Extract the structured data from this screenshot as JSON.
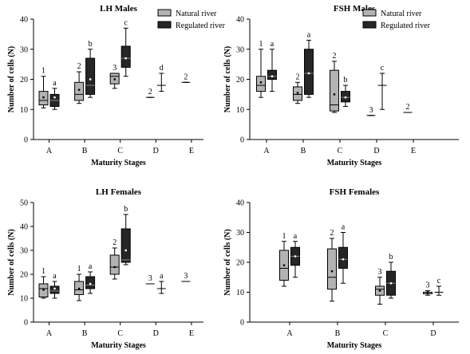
{
  "legend": {
    "natural": "Natural river",
    "regulated": "Regulated river"
  },
  "colors": {
    "natural": "#b3b3b3",
    "regulated": "#262626",
    "axis": "#000000"
  },
  "chart_data": [
    {
      "type": "box",
      "title": "LH Males",
      "xlabel": "Maturity Stages",
      "ylabel": "Number of cells (N)",
      "ylim": [
        0,
        40
      ],
      "yticks": [
        0,
        10,
        20,
        30,
        40
      ],
      "categories": [
        "A",
        "B",
        "C",
        "D",
        "E"
      ],
      "legend_position": "top-center",
      "series": [
        {
          "name": "Natural river",
          "boxes": [
            {
              "category": "A",
              "min": 10.5,
              "q1": 11.5,
              "median": 13,
              "q3": 16,
              "max": 21,
              "mean": 14,
              "label": "1"
            },
            {
              "category": "B",
              "min": 12,
              "q1": 13,
              "median": 15,
              "q3": 19,
              "max": 22.5,
              "mean": 16.5,
              "label": "2"
            },
            {
              "category": "C",
              "min": 17,
              "q1": 18.5,
              "median": 21,
              "q3": 22,
              "max": 22,
              "mean": 20,
              "label": "3"
            },
            {
              "category": "D",
              "min": 14,
              "q1": 14,
              "median": 14,
              "q3": 14,
              "max": 14,
              "mean": 14,
              "label": "2"
            },
            {
              "category": "E",
              "min": 19,
              "q1": 19,
              "median": 19,
              "q3": 19,
              "max": 19,
              "mean": 19,
              "label": "2"
            }
          ]
        },
        {
          "name": "Regulated river",
          "boxes": [
            {
              "category": "A",
              "min": 10,
              "q1": 11,
              "median": 13,
              "q3": 15,
              "max": 17,
              "mean": 14,
              "label": "a"
            },
            {
              "category": "B",
              "min": 14,
              "q1": 15,
              "median": 18,
              "q3": 27,
              "max": 30,
              "mean": 20,
              "label": "b"
            },
            {
              "category": "C",
              "min": 21,
              "q1": 24,
              "median": 27,
              "q3": 31,
              "max": 37,
              "mean": 27,
              "label": "c"
            },
            {
              "category": "D",
              "min": 16,
              "q1": 18,
              "median": 18,
              "q3": 18,
              "max": 22,
              "mean": 18,
              "label": "d"
            }
          ]
        }
      ]
    },
    {
      "type": "box",
      "title": "FSH Males",
      "xlabel": "Maturity Stages",
      "ylabel": "Number of cells (N)",
      "ylim": [
        0,
        40
      ],
      "yticks": [
        0,
        10,
        20,
        30,
        40
      ],
      "categories": [
        "A",
        "B",
        "C",
        "D",
        "E"
      ],
      "legend_position": "top-right",
      "series": [
        {
          "name": "Natural river",
          "boxes": [
            {
              "category": "A",
              "min": 14,
              "q1": 16,
              "median": 18,
              "q3": 21,
              "max": 30,
              "mean": 19,
              "label": "1"
            },
            {
              "category": "B",
              "min": 12,
              "q1": 13,
              "median": 15,
              "q3": 17.5,
              "max": 19,
              "mean": 15.5,
              "label": "2"
            },
            {
              "category": "C",
              "min": 9,
              "q1": 9.5,
              "median": 11.5,
              "q3": 23,
              "max": 26,
              "mean": 15,
              "label": "2"
            },
            {
              "category": "D",
              "min": 8,
              "q1": 8,
              "median": 8,
              "q3": 8,
              "max": 8,
              "mean": 8,
              "label": "3"
            },
            {
              "category": "E",
              "min": 9,
              "q1": 9,
              "median": 9,
              "q3": 9,
              "max": 9,
              "mean": 9,
              "label": "2"
            }
          ]
        },
        {
          "name": "Regulated river",
          "boxes": [
            {
              "category": "A",
              "min": 16,
              "q1": 20,
              "median": 21,
              "q3": 23,
              "max": 30,
              "mean": 21,
              "label": "a"
            },
            {
              "category": "B",
              "min": 14,
              "q1": 15,
              "median": 22,
              "q3": 30,
              "max": 33,
              "mean": 22,
              "label": "a"
            },
            {
              "category": "C",
              "min": 11,
              "q1": 12.5,
              "median": 14,
              "q3": 16,
              "max": 18,
              "mean": 14,
              "label": "b"
            },
            {
              "category": "D",
              "min": 10,
              "q1": 18,
              "median": 18,
              "q3": 18,
              "max": 22,
              "mean": 18,
              "label": "c"
            }
          ]
        }
      ]
    },
    {
      "type": "box",
      "title": "LH Females",
      "xlabel": "Maturity Stages",
      "ylabel": "Number of cells (N)",
      "ylim": [
        0,
        50
      ],
      "yticks": [
        0,
        10,
        20,
        30,
        40,
        50
      ],
      "categories": [
        "A",
        "B",
        "C",
        "D",
        "E"
      ],
      "legend_position": "none",
      "series": [
        {
          "name": "Natural river",
          "boxes": [
            {
              "category": "A",
              "min": 10,
              "q1": 10.5,
              "median": 14,
              "q3": 16,
              "max": 19,
              "mean": 13.5,
              "label": "1"
            },
            {
              "category": "B",
              "min": 9,
              "q1": 11.5,
              "median": 13.5,
              "q3": 17,
              "max": 20,
              "mean": 14,
              "label": "1"
            },
            {
              "category": "C",
              "min": 18,
              "q1": 20,
              "median": 23,
              "q3": 28,
              "max": 31,
              "mean": 23,
              "label": "2"
            },
            {
              "category": "D",
              "min": 16,
              "q1": 16,
              "median": 16,
              "q3": 16,
              "max": 16,
              "mean": 16,
              "label": "3"
            },
            {
              "category": "E",
              "min": 17,
              "q1": 17,
              "median": 17,
              "q3": 17,
              "max": 17,
              "mean": 17,
              "label": "3"
            }
          ]
        },
        {
          "name": "Regulated river",
          "boxes": [
            {
              "category": "A",
              "min": 10,
              "q1": 12,
              "median": 13,
              "q3": 15,
              "max": 17,
              "mean": 14,
              "label": "a"
            },
            {
              "category": "B",
              "min": 12,
              "q1": 14,
              "median": 15.5,
              "q3": 19,
              "max": 21,
              "mean": 16,
              "label": "a"
            },
            {
              "category": "C",
              "min": 24,
              "q1": 25,
              "median": 26,
              "q3": 39,
              "max": 45,
              "mean": 30,
              "label": "b"
            },
            {
              "category": "D",
              "min": 12,
              "q1": 14,
              "median": 14,
              "q3": 14,
              "max": 17,
              "mean": 14,
              "label": "a"
            }
          ]
        }
      ]
    },
    {
      "type": "box",
      "title": "FSH Females",
      "xlabel": "Maturity Stages",
      "ylabel": "Number of cells (N)",
      "ylim": [
        0,
        40
      ],
      "yticks": [
        0,
        10,
        20,
        30,
        40
      ],
      "categories": [
        "A",
        "B",
        "C",
        "D"
      ],
      "legend_position": "none",
      "series": [
        {
          "name": "Natural river",
          "boxes": [
            {
              "category": "A",
              "min": 12,
              "q1": 14,
              "median": 18,
              "q3": 24,
              "max": 27,
              "mean": 19,
              "label": "1"
            },
            {
              "category": "B",
              "min": 7,
              "q1": 11,
              "median": 15,
              "q3": 24.5,
              "max": 28,
              "mean": 17,
              "label": "2"
            },
            {
              "category": "C",
              "min": 6,
              "q1": 9,
              "median": 11,
              "q3": 12,
              "max": 15,
              "mean": 10.5,
              "label": "3"
            },
            {
              "category": "D",
              "min": 9,
              "q1": 9.5,
              "median": 10,
              "q3": 10,
              "max": 10.5,
              "mean": 10,
              "label": "3"
            }
          ]
        },
        {
          "name": "Regulated river",
          "boxes": [
            {
              "category": "A",
              "min": 15,
              "q1": 19,
              "median": 22,
              "q3": 25,
              "max": 27,
              "mean": 22,
              "label": "a"
            },
            {
              "category": "B",
              "min": 13,
              "q1": 18,
              "median": 21,
              "q3": 25,
              "max": 30,
              "mean": 21,
              "label": "a"
            },
            {
              "category": "C",
              "min": 8,
              "q1": 9,
              "median": 13,
              "q3": 17,
              "max": 20,
              "mean": 13,
              "label": "b"
            },
            {
              "category": "D",
              "min": 9,
              "q1": 10,
              "median": 10,
              "q3": 10,
              "max": 12,
              "mean": 10,
              "label": "c"
            }
          ]
        }
      ]
    }
  ]
}
